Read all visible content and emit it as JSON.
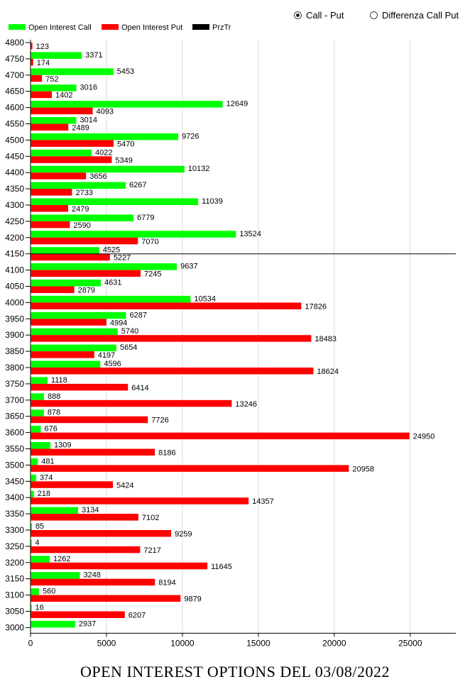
{
  "controls": {
    "options": [
      {
        "label": "Call - Put",
        "checked": true
      },
      {
        "label": "Differenza Call Put",
        "checked": false
      }
    ]
  },
  "footer_title": "OPEN INTEREST OPTIONS DEL 03/08/2022",
  "colors": {
    "call": "#00ff00",
    "put": "#ff0000",
    "prztr": "#000000",
    "grid": "#dcdcdc"
  },
  "chart_data": {
    "type": "bar",
    "orientation": "horizontal",
    "title": "",
    "xlabel": "",
    "ylabel": "",
    "xlim": [
      0,
      28000
    ],
    "x_ticks": [
      0,
      5000,
      10000,
      15000,
      20000,
      25000
    ],
    "grid": true,
    "legend_position": "top-left",
    "legend": [
      "Open Interest Call",
      "Open Interest Put",
      "PrzTr"
    ],
    "categories": [
      "4800",
      "4750",
      "4700",
      "4650",
      "4600",
      "4550",
      "4500",
      "4450",
      "4400",
      "4350",
      "4300",
      "4250",
      "4200",
      "4150",
      "4100",
      "4050",
      "4000",
      "3950",
      "3900",
      "3850",
      "3800",
      "3750",
      "3700",
      "3650",
      "3600",
      "3550",
      "3500",
      "3450",
      "3400",
      "3350",
      "3300",
      "3250",
      "3200",
      "3150",
      "3100",
      "3050",
      "3000"
    ],
    "series": [
      {
        "name": "Open Interest Call",
        "values": [
          null,
          3371,
          5453,
          3016,
          12649,
          3014,
          9726,
          4022,
          10132,
          6267,
          11039,
          6779,
          13524,
          4525,
          9637,
          4631,
          10534,
          6287,
          5740,
          5654,
          4596,
          1118,
          888,
          878,
          676,
          1309,
          481,
          374,
          218,
          3134,
          85,
          4,
          1262,
          3248,
          560,
          16,
          2937
        ]
      },
      {
        "name": "Open Interest Put",
        "values": [
          123,
          174,
          752,
          1402,
          4093,
          2489,
          5470,
          5349,
          3656,
          2733,
          2479,
          2590,
          7070,
          5227,
          7245,
          2879,
          17826,
          4994,
          18483,
          4197,
          18624,
          6414,
          13246,
          7726,
          24950,
          8186,
          20958,
          5424,
          14357,
          7102,
          9259,
          7217,
          11645,
          8194,
          9879,
          6207,
          null
        ]
      }
    ],
    "prztr_level": "4150"
  }
}
